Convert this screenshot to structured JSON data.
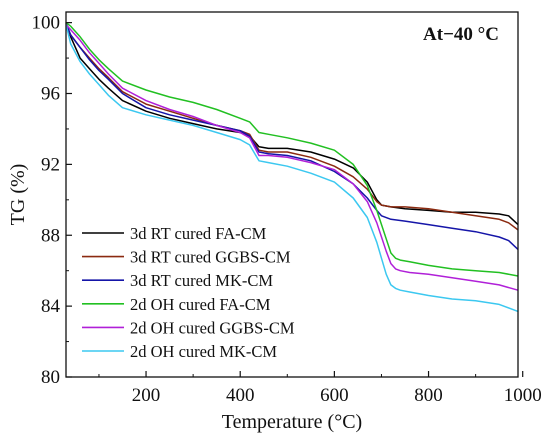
{
  "chart_data": {
    "type": "line",
    "title": "",
    "annotation": "At−40 °C",
    "xlabel": "Temperature (°C)",
    "ylabel": "TG (%)",
    "xlim": [
      30,
      990
    ],
    "ylim": [
      80,
      100.6
    ],
    "xticks": [
      200,
      400,
      600,
      800,
      1000
    ],
    "yticks": [
      80,
      84,
      88,
      92,
      96,
      100
    ],
    "legend_position": "bottom-left",
    "series": [
      {
        "name": "3d RT cured FA-CM",
        "color": "#000000",
        "x": [
          30,
          40,
          60,
          80,
          100,
          120,
          150,
          200,
          250,
          300,
          350,
          400,
          420,
          440,
          460,
          500,
          550,
          600,
          640,
          670,
          690,
          700,
          720,
          750,
          800,
          850,
          900,
          950,
          970,
          990
        ],
        "y": [
          100.0,
          99.2,
          98.0,
          97.4,
          96.8,
          96.3,
          95.6,
          95.0,
          94.6,
          94.3,
          94.0,
          93.8,
          93.6,
          93.0,
          92.9,
          92.9,
          92.7,
          92.3,
          91.8,
          91.0,
          90.0,
          89.7,
          89.6,
          89.5,
          89.4,
          89.3,
          89.3,
          89.2,
          89.1,
          88.6
        ]
      },
      {
        "name": "3d RT cured GGBS-CM",
        "color": "#8b2a10",
        "x": [
          30,
          40,
          60,
          80,
          100,
          120,
          150,
          200,
          250,
          300,
          350,
          400,
          420,
          440,
          460,
          500,
          550,
          600,
          640,
          670,
          690,
          700,
          720,
          750,
          800,
          850,
          900,
          950,
          970,
          990
        ],
        "y": [
          99.8,
          99.3,
          98.6,
          98.0,
          97.4,
          96.9,
          96.1,
          95.4,
          95.0,
          94.6,
          94.2,
          93.9,
          93.7,
          92.8,
          92.7,
          92.7,
          92.4,
          91.9,
          91.3,
          90.6,
          89.9,
          89.7,
          89.6,
          89.6,
          89.5,
          89.3,
          89.1,
          88.9,
          88.7,
          88.3
        ]
      },
      {
        "name": "3d RT cured MK-CM",
        "color": "#1515a8",
        "x": [
          30,
          40,
          60,
          80,
          100,
          120,
          150,
          200,
          250,
          300,
          350,
          400,
          420,
          440,
          460,
          500,
          550,
          600,
          640,
          670,
          690,
          700,
          720,
          750,
          800,
          850,
          900,
          950,
          970,
          990
        ],
        "y": [
          100.0,
          99.3,
          98.6,
          97.9,
          97.3,
          96.8,
          96.0,
          95.2,
          94.8,
          94.5,
          94.2,
          93.9,
          93.6,
          92.7,
          92.6,
          92.5,
          92.2,
          91.6,
          90.9,
          90.1,
          89.4,
          89.1,
          88.9,
          88.8,
          88.6,
          88.4,
          88.2,
          87.9,
          87.7,
          87.2
        ]
      },
      {
        "name": "2d OH cured FA-CM",
        "color": "#22c022",
        "x": [
          30,
          40,
          60,
          80,
          100,
          120,
          150,
          200,
          250,
          300,
          350,
          400,
          420,
          440,
          460,
          500,
          550,
          600,
          640,
          670,
          690,
          700,
          710,
          720,
          730,
          740,
          760,
          800,
          850,
          900,
          950,
          990
        ],
        "y": [
          100.0,
          99.8,
          99.2,
          98.5,
          97.9,
          97.4,
          96.7,
          96.2,
          95.8,
          95.5,
          95.1,
          94.6,
          94.4,
          93.8,
          93.7,
          93.5,
          93.2,
          92.8,
          92.0,
          90.8,
          89.4,
          88.6,
          87.8,
          87.0,
          86.7,
          86.6,
          86.5,
          86.3,
          86.1,
          86.0,
          85.9,
          85.7
        ]
      },
      {
        "name": "2d OH cured GGBS-CM",
        "color": "#b020d8",
        "x": [
          30,
          40,
          60,
          80,
          100,
          120,
          150,
          200,
          250,
          300,
          350,
          400,
          420,
          440,
          460,
          500,
          550,
          600,
          640,
          670,
          690,
          700,
          710,
          720,
          730,
          740,
          760,
          800,
          850,
          900,
          950,
          990
        ],
        "y": [
          99.9,
          99.6,
          99.0,
          98.3,
          97.7,
          97.1,
          96.3,
          95.6,
          95.1,
          94.7,
          94.2,
          93.8,
          93.5,
          92.5,
          92.5,
          92.4,
          92.1,
          91.7,
          90.9,
          89.9,
          88.7,
          87.9,
          87.1,
          86.4,
          86.1,
          86.0,
          85.9,
          85.8,
          85.6,
          85.4,
          85.2,
          84.9
        ]
      },
      {
        "name": "2d OH cured MK-CM",
        "color": "#3cc8f0",
        "x": [
          30,
          40,
          60,
          80,
          100,
          120,
          150,
          200,
          250,
          300,
          350,
          400,
          420,
          440,
          460,
          500,
          550,
          600,
          640,
          670,
          690,
          700,
          710,
          720,
          730,
          740,
          760,
          800,
          850,
          900,
          950,
          990
        ],
        "y": [
          99.9,
          98.8,
          97.8,
          97.1,
          96.5,
          95.9,
          95.2,
          94.8,
          94.5,
          94.2,
          93.8,
          93.4,
          93.1,
          92.2,
          92.1,
          91.9,
          91.5,
          91.0,
          90.1,
          89.0,
          87.6,
          86.7,
          85.8,
          85.2,
          85.0,
          84.9,
          84.8,
          84.6,
          84.4,
          84.3,
          84.1,
          83.7
        ]
      }
    ]
  }
}
